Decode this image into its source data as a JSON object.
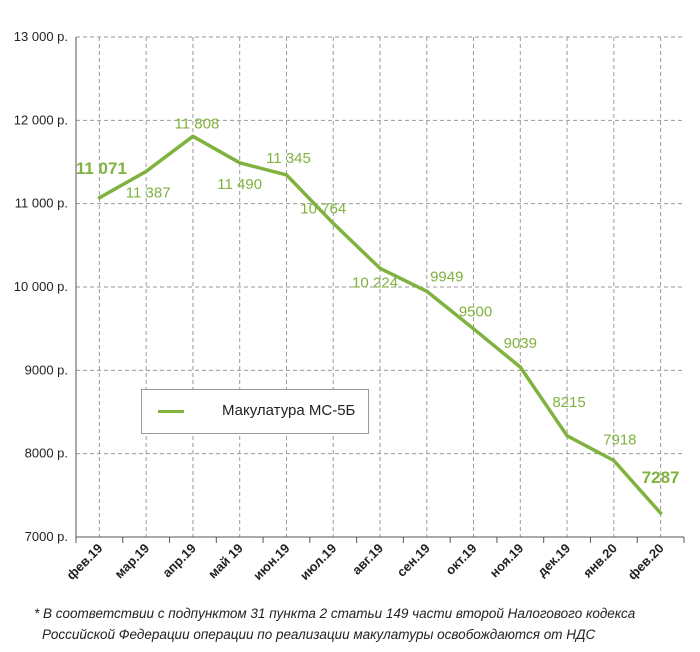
{
  "chart_data": {
    "type": "line",
    "categories": [
      "фев.19",
      "мар.19",
      "апр.19",
      "май 19",
      "июн.19",
      "июл.19",
      "авг.19",
      "сен.19",
      "окт.19",
      "ноя.19",
      "дек.19",
      "янв.20",
      "фев.20"
    ],
    "series": [
      {
        "name": "Макулатура МС-5Б",
        "values": [
          11071,
          11387,
          11808,
          11490,
          11345,
          10764,
          10224,
          9949,
          9500,
          9039,
          8215,
          7918,
          7287
        ],
        "color": "#7fb23e"
      }
    ],
    "data_labels": [
      "11 071",
      "11 387",
      "11 808",
      "11 490",
      "11 345",
      "10 764",
      "10 224",
      "9949",
      "9500",
      "9039",
      "8215",
      "7918",
      "7287"
    ],
    "y_ticks": [
      7000,
      8000,
      9000,
      10000,
      11000,
      12000,
      13000
    ],
    "y_tick_labels": [
      "7000 р.",
      "8000 р.",
      "9000 р.",
      "10 000 р.",
      "11 000 р.",
      "12 000 р.",
      "13 000 р."
    ],
    "ylim": [
      7000,
      13000
    ],
    "grid": true,
    "legend_position": "middle-left",
    "title": "",
    "xlabel": "",
    "ylabel": ""
  },
  "legend": {
    "label": "Макулатура МС-5Б"
  },
  "footnote": {
    "line1": "* В соответствии с подпунктом 31 пункта 2 статьи 149 части второй Налогового кодекса",
    "line2": "Российской Федерации операции по реализации макулатуры освобождаются от НДС"
  }
}
